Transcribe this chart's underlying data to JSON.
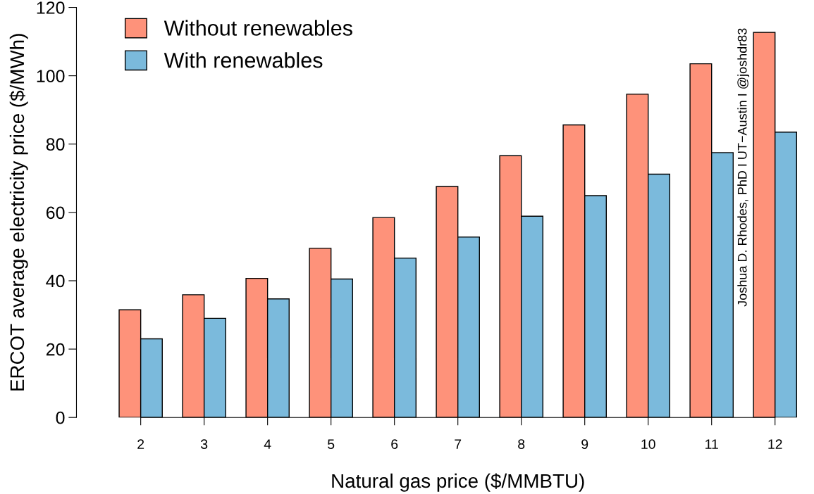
{
  "chart_data": {
    "type": "bar",
    "categories": [
      "2",
      "3",
      "4",
      "5",
      "6",
      "7",
      "8",
      "9",
      "10",
      "11",
      "12"
    ],
    "series": [
      {
        "name": "Without renewables",
        "color": "#fe927a",
        "values": [
          31.5,
          35.9,
          40.7,
          49.5,
          58.5,
          67.6,
          76.6,
          85.6,
          94.6,
          103.5,
          112.7
        ]
      },
      {
        "name": "With renewables",
        "color": "#7bbadc",
        "values": [
          23.0,
          29.0,
          34.7,
          40.5,
          46.6,
          52.8,
          58.9,
          64.9,
          71.2,
          77.5,
          83.5
        ]
      }
    ],
    "xlabel": "Natural gas price ($/MMBTU)",
    "ylabel": "ERCOT average electricity price ($/MWh)",
    "ylim": [
      0,
      120
    ],
    "yticks": [
      0,
      20,
      40,
      60,
      80,
      100,
      120
    ],
    "legend": "top left",
    "grid": false,
    "annotations": [
      "Joshua D. Rhodes, PhD I UT−Austin I @joshdr83"
    ]
  }
}
